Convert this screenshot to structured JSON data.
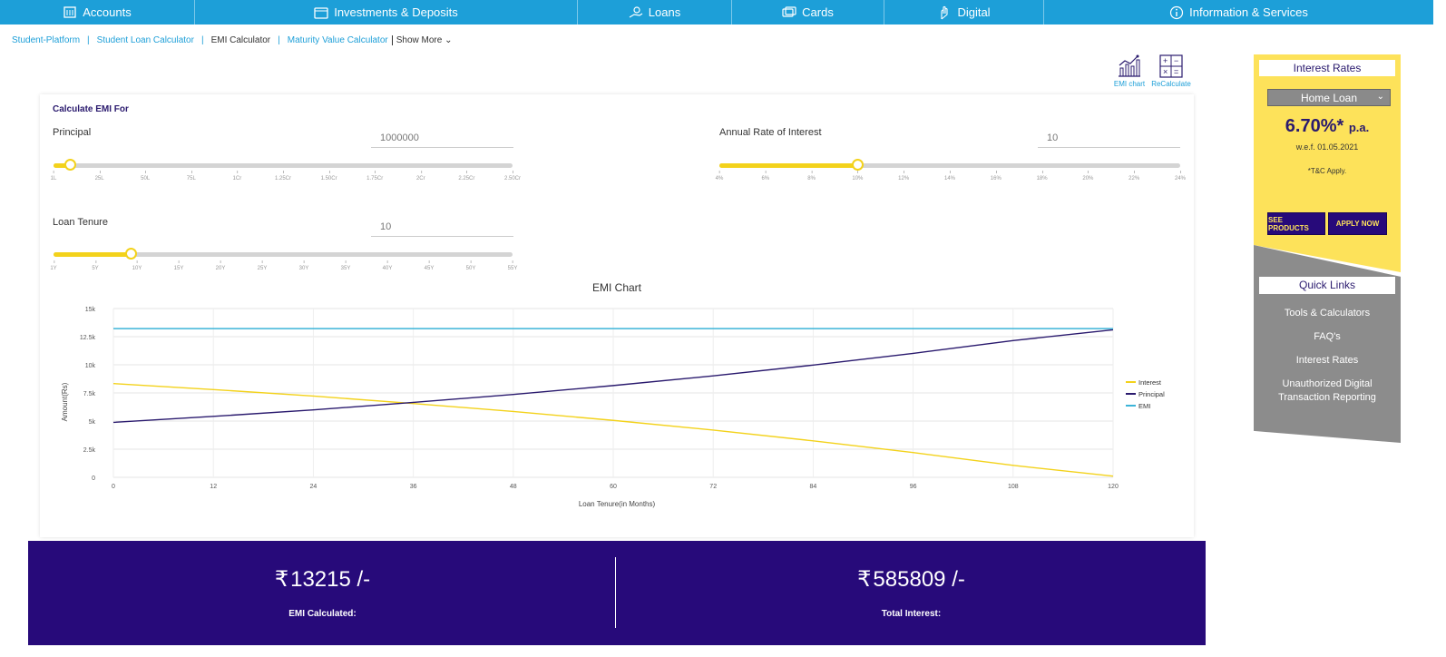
{
  "nav": {
    "items": [
      {
        "label": "Accounts",
        "icon": "bank-icon"
      },
      {
        "label": "Investments & Deposits",
        "icon": "wallet-icon"
      },
      {
        "label": "Loans",
        "icon": "loan-hand-icon"
      },
      {
        "label": "Cards",
        "icon": "cards-icon"
      },
      {
        "label": "Digital",
        "icon": "digital-hand-icon"
      },
      {
        "label": "Information & Services",
        "icon": "info-icon"
      }
    ]
  },
  "breadcrumb": {
    "student_platform": "Student-Platform",
    "student_loan_calculator": "Student Loan Calculator",
    "emi_calculator": "EMI Calculator",
    "maturity_value_calculator": "Maturity Value Calculator",
    "show_more": "Show More ⌄",
    "separator": "|"
  },
  "tools": {
    "emi_chart": "EMI chart",
    "recalculate": "ReCalculate"
  },
  "form": {
    "title": "Calculate EMI For",
    "principal_label": "Principal",
    "principal_value": "1000000",
    "principal_ticks": [
      "1L",
      "25L",
      "50L",
      "75L",
      "1Cr",
      "1.25Cr",
      "1.50Cr",
      "1.75Cr",
      "2Cr",
      "2.25Cr",
      "2.50Cr"
    ],
    "principal_fill": 0.036,
    "rate_label": "Annual Rate of Interest",
    "rate_value": "10",
    "rate_ticks": [
      "4%",
      "6%",
      "8%",
      "10%",
      "12%",
      "14%",
      "16%",
      "18%",
      "20%",
      "22%",
      "24%"
    ],
    "rate_fill": 0.3,
    "tenure_label": "Loan Tenure",
    "tenure_value": "10",
    "tenure_ticks": [
      "1Y",
      "5Y",
      "10Y",
      "15Y",
      "20Y",
      "25Y",
      "30Y",
      "35Y",
      "40Y",
      "45Y",
      "50Y",
      "55Y"
    ],
    "tenure_fill": 0.167
  },
  "chart_data": {
    "type": "line",
    "title": "EMI Chart",
    "xlabel": "Loan Tenure(in Months)",
    "ylabel": "Amount(Rs)",
    "x_ticks": [
      0,
      12,
      24,
      36,
      48,
      60,
      72,
      84,
      96,
      108,
      120
    ],
    "y_tick_labels": [
      "0",
      "2.5k",
      "5k",
      "7.5k",
      "10k",
      "12.5k",
      "15k"
    ],
    "xlim": [
      0,
      120
    ],
    "ylim": [
      0,
      15000
    ],
    "legend_position": "right",
    "grid": true,
    "x": [
      0,
      12,
      24,
      36,
      48,
      60,
      72,
      84,
      96,
      108,
      120
    ],
    "series": [
      {
        "name": "Interest",
        "color": "#f3d21b",
        "values": [
          8333,
          7800,
          7220,
          6560,
          5850,
          5060,
          4200,
          3240,
          2200,
          1060,
          108
        ]
      },
      {
        "name": "Principal",
        "color": "#2a1a6e",
        "values": [
          4882,
          5415,
          5995,
          6655,
          7365,
          8155,
          9015,
          9975,
          11015,
          12155,
          13107
        ]
      },
      {
        "name": "EMI",
        "color": "#3cb4d8",
        "values": [
          13215,
          13215,
          13215,
          13215,
          13215,
          13215,
          13215,
          13215,
          13215,
          13215,
          13215
        ]
      }
    ]
  },
  "result": {
    "rupee": "₹",
    "emi_amount": "13215",
    "emi_suffix": "/-",
    "emi_label": "EMI Calculated:",
    "interest_amount": "585809",
    "interest_suffix": "/-",
    "interest_label": "Total Interest:"
  },
  "sidebar": {
    "interest_rates_title": "Interest Rates",
    "loan_type": "Home Loan",
    "rate": "6.70%*",
    "rate_suffix": "p.a.",
    "effective": "w.e.f. 01.05.2021",
    "tnc": "*T&C Apply.",
    "see_products": "SEE PRODUCTS",
    "apply_now": "APPLY NOW",
    "quick_links_title": "Quick Links",
    "quick_links": [
      "Tools & Calculators",
      "FAQ's",
      "Interest Rates",
      "Unauthorized Digital Transaction Reporting"
    ]
  },
  "colors": {
    "brand_blue": "#1d9fd8",
    "brand_purple": "#270a7a",
    "brand_yellow": "#f3d21b"
  }
}
